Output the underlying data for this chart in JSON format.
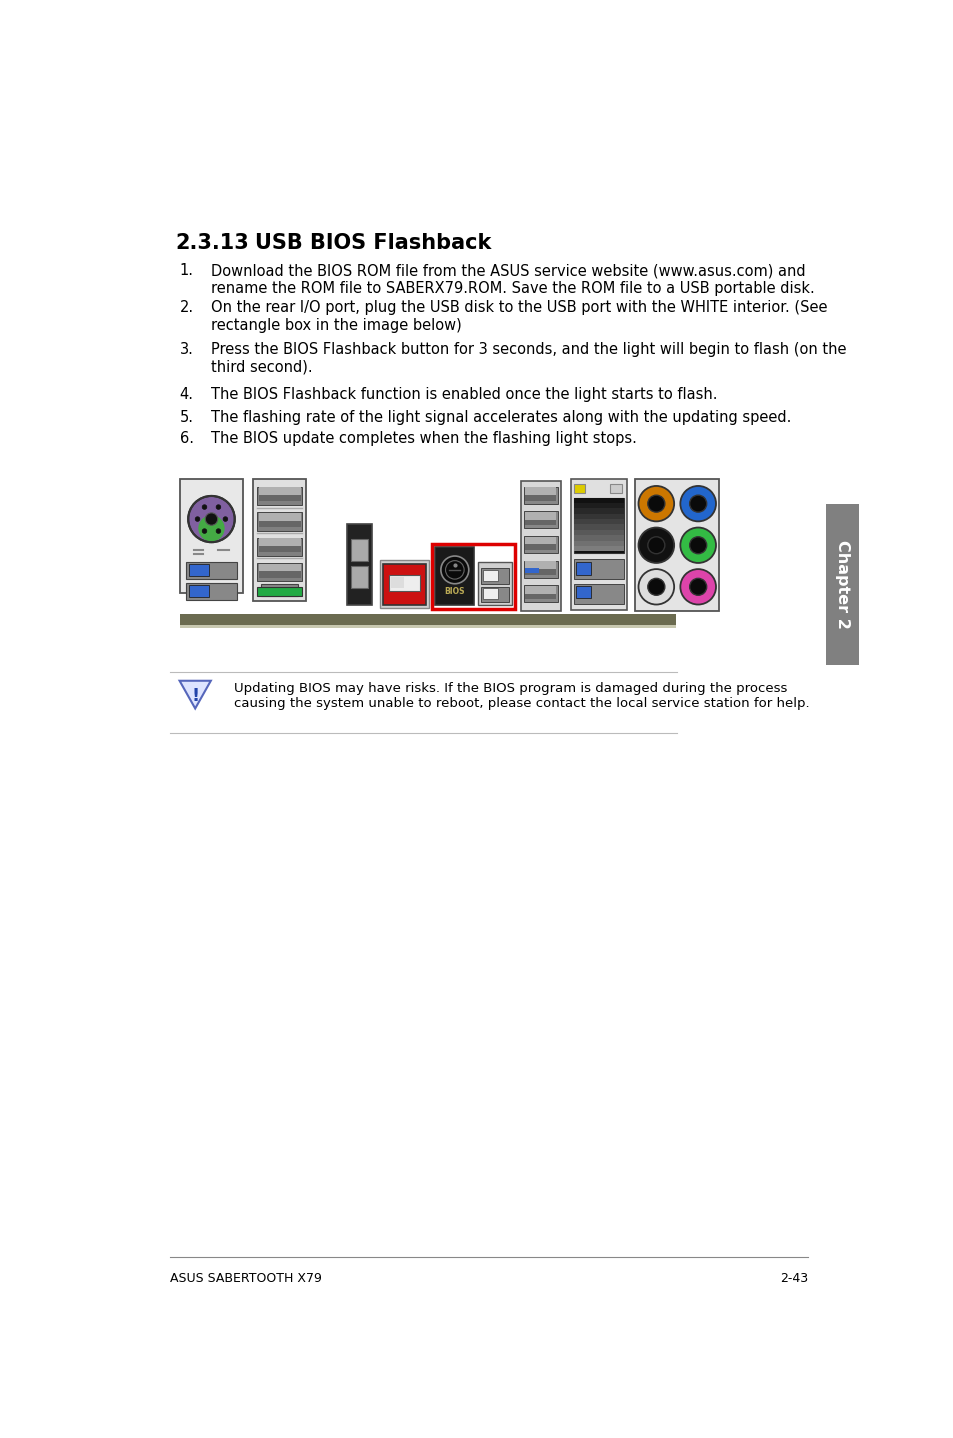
{
  "section_number": "2.3.13",
  "section_title": "USB BIOS Flashback",
  "items": [
    "Download the BIOS ROM file from the ASUS service website (www.asus.com) and\nrename the ROM file to SABERX79.ROM. Save the ROM file to a USB portable disk.",
    "On the rear I/O port, plug the USB disk to the USB port with the WHITE interior. (See\nrectangle box in the image below)",
    "Press the BIOS Flashback button for 3 seconds, and the light will begin to flash (on the\nthird second).",
    "The BIOS Flashback function is enabled once the light starts to flash.",
    "The flashing rate of the light signal accelerates along with the updating speed.",
    "The BIOS update completes when the flashing light stops."
  ],
  "warning_text": "Updating BIOS may have risks. If the BIOS program is damaged during the process\ncausing the system unable to reboot, please contact the local service station for help.",
  "footer_left": "ASUS SABERTOOTH X79",
  "footer_right": "2-43",
  "chapter_label": "Chapter 2",
  "bg_color": "#ffffff",
  "text_color": "#000000",
  "chapter_tab_color": "#808080"
}
